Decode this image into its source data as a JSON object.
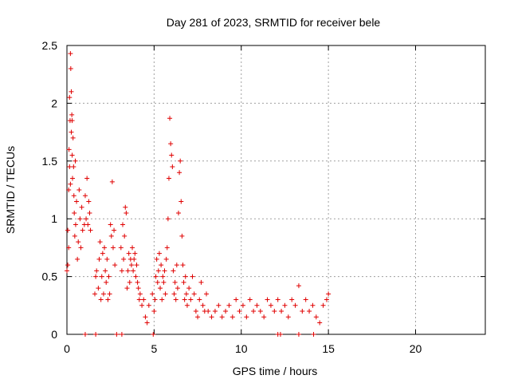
{
  "chart_data": {
    "type": "scatter",
    "title": "Day 281 of 2023, SRMTID for receiver bele",
    "xlabel": "GPS time / hours",
    "ylabel": "SRMTID / TECUs",
    "xlim": [
      0,
      24
    ],
    "ylim": [
      0,
      2.5
    ],
    "x_ticks": [
      0,
      5,
      10,
      15,
      20
    ],
    "y_ticks": [
      0,
      0.5,
      1,
      1.5,
      2,
      2.5
    ],
    "y_tick_labels": [
      "0",
      "0.5",
      "1",
      "1.5",
      "2",
      "2.5"
    ],
    "grid": true,
    "legend": "none",
    "marker": "+",
    "color": "#e00000",
    "series": [
      {
        "name": "SRMTID",
        "points": [
          [
            0.0,
            0.55
          ],
          [
            0.05,
            0.9
          ],
          [
            0.05,
            0.6
          ],
          [
            0.1,
            1.25
          ],
          [
            0.1,
            0.75
          ],
          [
            0.12,
            1.6
          ],
          [
            0.15,
            2.05
          ],
          [
            0.15,
            1.45
          ],
          [
            0.18,
            1.85
          ],
          [
            0.2,
            2.43
          ],
          [
            0.2,
            1.3
          ],
          [
            0.22,
            2.3
          ],
          [
            0.25,
            2.1
          ],
          [
            0.25,
            1.75
          ],
          [
            0.28,
            1.9
          ],
          [
            0.3,
            1.55
          ],
          [
            0.3,
            1.85
          ],
          [
            0.32,
            1.35
          ],
          [
            0.35,
            1.7
          ],
          [
            0.38,
            1.45
          ],
          [
            0.4,
            1.2
          ],
          [
            0.42,
            1.05
          ],
          [
            0.45,
            0.85
          ],
          [
            0.48,
            1.5
          ],
          [
            0.5,
            0.95
          ],
          [
            0.55,
            1.15
          ],
          [
            0.6,
            0.65
          ],
          [
            0.65,
            0.8
          ],
          [
            0.7,
            1.25
          ],
          [
            0.75,
            1.0
          ],
          [
            0.8,
            0.75
          ],
          [
            0.85,
            1.1
          ],
          [
            0.9,
            0.9
          ],
          [
            1.0,
            0.95
          ],
          [
            1.05,
            1.2
          ],
          [
            1.1,
            1.0
          ],
          [
            1.15,
            1.35
          ],
          [
            1.2,
            0.95
          ],
          [
            1.25,
            1.15
          ],
          [
            1.3,
            1.05
          ],
          [
            1.35,
            0.9
          ],
          [
            1.6,
            0.35
          ],
          [
            1.65,
            0.5
          ],
          [
            1.7,
            0.55
          ],
          [
            1.8,
            0.4
          ],
          [
            1.85,
            0.65
          ],
          [
            1.9,
            0.8
          ],
          [
            1.95,
            0.3
          ],
          [
            2.0,
            0.5
          ],
          [
            2.05,
            0.7
          ],
          [
            2.1,
            0.35
          ],
          [
            2.15,
            0.75
          ],
          [
            2.2,
            0.55
          ],
          [
            2.25,
            0.45
          ],
          [
            2.3,
            0.65
          ],
          [
            2.35,
            0.3
          ],
          [
            2.4,
            0.5
          ],
          [
            2.45,
            0.35
          ],
          [
            2.5,
            0.95
          ],
          [
            2.55,
            0.85
          ],
          [
            2.6,
            1.32
          ],
          [
            2.65,
            0.75
          ],
          [
            2.7,
            0.9
          ],
          [
            2.75,
            0.6
          ],
          [
            3.1,
            0.75
          ],
          [
            3.15,
            0.55
          ],
          [
            3.2,
            0.95
          ],
          [
            3.25,
            0.65
          ],
          [
            3.3,
            0.85
          ],
          [
            3.35,
            1.1
          ],
          [
            3.4,
            1.05
          ],
          [
            3.45,
            0.4
          ],
          [
            3.5,
            0.55
          ],
          [
            3.55,
            0.7
          ],
          [
            3.6,
            0.45
          ],
          [
            3.65,
            0.65
          ],
          [
            3.7,
            0.6
          ],
          [
            3.75,
            0.75
          ],
          [
            3.8,
            0.55
          ],
          [
            3.85,
            0.65
          ],
          [
            3.9,
            0.7
          ],
          [
            3.95,
            0.5
          ],
          [
            4.0,
            0.6
          ],
          [
            4.05,
            0.45
          ],
          [
            4.1,
            0.4
          ],
          [
            4.15,
            0.3
          ],
          [
            4.2,
            0.35
          ],
          [
            4.3,
            0.25
          ],
          [
            4.4,
            0.3
          ],
          [
            4.5,
            0.15
          ],
          [
            4.6,
            0.1
          ],
          [
            4.7,
            0.25
          ],
          [
            4.9,
            0.35
          ],
          [
            5.0,
            0.2
          ],
          [
            5.05,
            0.3
          ],
          [
            5.1,
            0.5
          ],
          [
            5.15,
            0.65
          ],
          [
            5.2,
            0.45
          ],
          [
            5.25,
            0.55
          ],
          [
            5.3,
            0.7
          ],
          [
            5.35,
            0.4
          ],
          [
            5.4,
            0.6
          ],
          [
            5.45,
            0.3
          ],
          [
            5.5,
            0.5
          ],
          [
            5.55,
            0.45
          ],
          [
            5.6,
            0.55
          ],
          [
            5.65,
            0.35
          ],
          [
            5.7,
            0.65
          ],
          [
            5.75,
            0.75
          ],
          [
            5.8,
            1.0
          ],
          [
            5.85,
            1.35
          ],
          [
            5.9,
            1.87
          ],
          [
            5.95,
            1.65
          ],
          [
            6.0,
            1.55
          ],
          [
            6.05,
            1.45
          ],
          [
            6.1,
            0.55
          ],
          [
            6.15,
            0.35
          ],
          [
            6.2,
            0.45
          ],
          [
            6.25,
            0.3
          ],
          [
            6.3,
            0.6
          ],
          [
            6.35,
            0.4
          ],
          [
            6.4,
            1.05
          ],
          [
            6.45,
            1.4
          ],
          [
            6.5,
            1.5
          ],
          [
            6.55,
            1.15
          ],
          [
            6.6,
            0.85
          ],
          [
            6.65,
            0.6
          ],
          [
            6.7,
            0.45
          ],
          [
            6.75,
            0.3
          ],
          [
            6.8,
            0.5
          ],
          [
            6.85,
            0.35
          ],
          [
            6.9,
            0.25
          ],
          [
            7.0,
            0.4
          ],
          [
            7.1,
            0.3
          ],
          [
            7.2,
            0.5
          ],
          [
            7.3,
            0.35
          ],
          [
            7.4,
            0.2
          ],
          [
            7.5,
            0.15
          ],
          [
            7.6,
            0.3
          ],
          [
            7.7,
            0.45
          ],
          [
            7.8,
            0.25
          ],
          [
            7.9,
            0.2
          ],
          [
            8.0,
            0.35
          ],
          [
            8.1,
            0.2
          ],
          [
            8.3,
            0.15
          ],
          [
            8.5,
            0.2
          ],
          [
            8.7,
            0.25
          ],
          [
            8.9,
            0.15
          ],
          [
            9.1,
            0.2
          ],
          [
            9.3,
            0.25
          ],
          [
            9.5,
            0.15
          ],
          [
            9.7,
            0.3
          ],
          [
            9.9,
            0.2
          ],
          [
            10.1,
            0.25
          ],
          [
            10.3,
            0.15
          ],
          [
            10.5,
            0.3
          ],
          [
            10.7,
            0.2
          ],
          [
            10.9,
            0.25
          ],
          [
            11.1,
            0.2
          ],
          [
            11.3,
            0.15
          ],
          [
            11.5,
            0.3
          ],
          [
            11.7,
            0.25
          ],
          [
            11.9,
            0.2
          ],
          [
            12.1,
            0.3
          ],
          [
            12.3,
            0.2
          ],
          [
            12.5,
            0.25
          ],
          [
            12.7,
            0.15
          ],
          [
            12.9,
            0.3
          ],
          [
            13.1,
            0.25
          ],
          [
            13.3,
            0.42
          ],
          [
            13.5,
            0.2
          ],
          [
            13.7,
            0.3
          ],
          [
            13.9,
            0.2
          ],
          [
            14.1,
            0.25
          ],
          [
            14.3,
            0.15
          ],
          [
            14.5,
            0.1
          ],
          [
            14.7,
            0.25
          ],
          [
            14.9,
            0.3
          ],
          [
            15.0,
            0.35
          ],
          [
            1.05,
            0.0
          ],
          [
            1.65,
            0.0
          ],
          [
            2.85,
            0.0
          ],
          [
            3.15,
            0.0
          ],
          [
            4.95,
            0.0
          ],
          [
            12.1,
            0.0
          ],
          [
            12.25,
            0.0
          ],
          [
            13.3,
            0.0
          ],
          [
            14.15,
            0.0
          ]
        ]
      }
    ]
  }
}
